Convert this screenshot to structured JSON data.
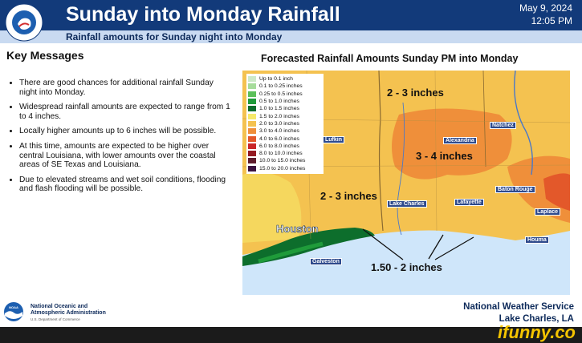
{
  "header": {
    "title": "Sunday into Monday Rainfall",
    "subtitle": "Rainfall amounts for Sunday night into Monday",
    "date": "May 9, 2024",
    "time": "12:05 PM",
    "seal_text": "NATIONAL WEATHER SERVICE"
  },
  "key_messages": {
    "title": "Key Messages",
    "items": [
      "There are good chances for additional rainfall Sunday night into Monday.",
      "Widespread rainfall amounts are expected to range from 1 to 4 inches.",
      "Locally higher amounts up to 6 inches will be possible.",
      "At this time, amounts are expected to be higher over central Louisiana, with lower amounts over the coastal areas of SE Texas and Louisiana.",
      "Due to elevated streams and wet soil conditions, flooding and flash flooding will be possible."
    ]
  },
  "map": {
    "title": "Forecasted Rainfall Amounts Sunday PM into Monday",
    "legend": [
      {
        "label": "Up to 0.1 inch",
        "color": "#cde9c8"
      },
      {
        "label": "0.1 to 0.25 inches",
        "color": "#a6dc9b"
      },
      {
        "label": "0.25 to 0.5 inches",
        "color": "#5cc05a"
      },
      {
        "label": "0.5 to 1.0 inches",
        "color": "#1f9b3a"
      },
      {
        "label": "1.0 to 1.5 inches",
        "color": "#0d6e2c"
      },
      {
        "label": "1.5 to 2.0 inches",
        "color": "#f6e96a"
      },
      {
        "label": "2.0 to 3.0 inches",
        "color": "#f4c250"
      },
      {
        "label": "3.0 to 4.0 inches",
        "color": "#ef8f3a"
      },
      {
        "label": "4.0 to 6.0 inches",
        "color": "#e3582a"
      },
      {
        "label": "6.0 to 8.0 inches",
        "color": "#c9262a"
      },
      {
        "label": "8.0 to 10.0 inches",
        "color": "#941a22"
      },
      {
        "label": "10.0 to 15.0 inches",
        "color": "#5e1c2d"
      },
      {
        "label": "15.0 to 20.0 inches",
        "color": "#3b1240"
      }
    ],
    "annotations": {
      "north": "2 - 3 inches",
      "central": "3 - 4 inches",
      "west": "2 - 3 inches",
      "coast": "1.50 - 2 inches"
    },
    "cities": {
      "lufkin": "Lufkin",
      "alexandria": "Alexandria",
      "natchez": "Natchez",
      "baton_rouge": "Baton Rouge",
      "lake_charles": "Lake Charles",
      "lafayette": "Lafayette",
      "laplace": "Laplace",
      "houma": "Houma",
      "houston": "Houston",
      "galveston": "Galveston"
    }
  },
  "footer": {
    "noaa_line1": "National Oceanic and",
    "noaa_line2": "Atmospheric Administration",
    "noaa_sub": "U.S. Department of Commerce",
    "noaa_logo_text": "NOAA",
    "nws_line1": "National Weather Service",
    "nws_line2": "Lake Charles, LA"
  },
  "watermark": "ifunny.co"
}
